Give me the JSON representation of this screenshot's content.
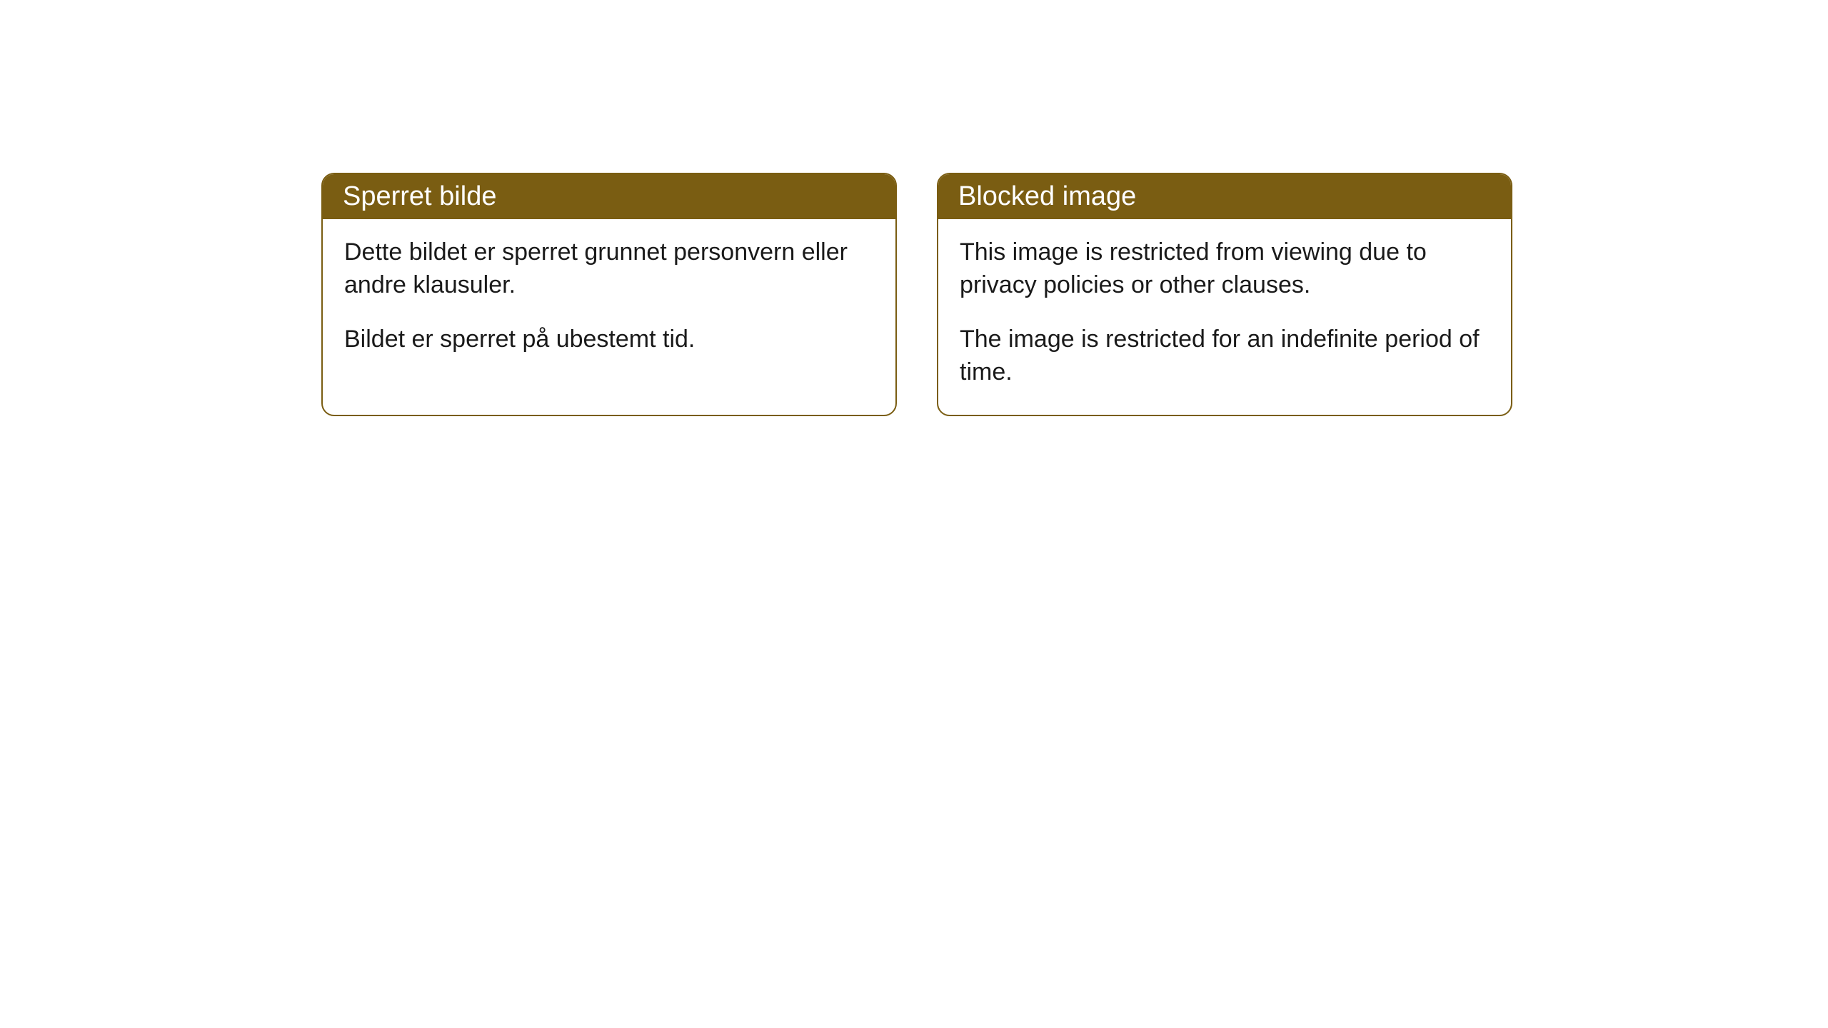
{
  "cards": [
    {
      "title": "Sperret bilde",
      "paragraph1": "Dette bildet er sperret grunnet personvern eller andre klausuler.",
      "paragraph2": "Bildet er sperret på ubestemt tid."
    },
    {
      "title": "Blocked image",
      "paragraph1": "This image is restricted from viewing due to privacy policies or other clauses.",
      "paragraph2": "The image is restricted for an indefinite period of time."
    }
  ],
  "styling": {
    "header_background": "#7a5d12",
    "header_text_color": "#ffffff",
    "border_color": "#7a5d12",
    "body_background": "#ffffff",
    "body_text_color": "#1a1a1a",
    "border_radius": 18,
    "title_fontsize": 38,
    "body_fontsize": 34
  }
}
